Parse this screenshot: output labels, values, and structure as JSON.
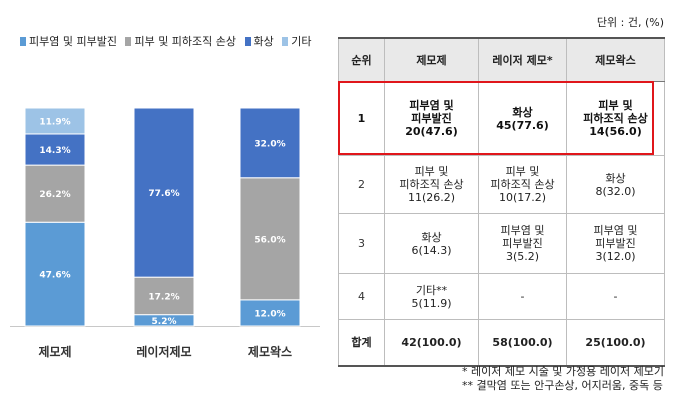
{
  "chart_data": {
    "type": "bar",
    "stacked": true,
    "categories": [
      "제모제",
      "레이저제모",
      "제모왁스"
    ],
    "series": [
      {
        "name": "피부염 및 피부발진",
        "values": [
          47.6,
          5.2,
          12.0
        ],
        "labels": [
          "47.6%",
          "5.2%",
          "12.0%"
        ],
        "color": "#5b9bd5"
      },
      {
        "name": "피부 및 피하조직 손상",
        "values": [
          26.2,
          17.2,
          56.0
        ],
        "labels": [
          "26.2%",
          "17.2%",
          "56.0%"
        ],
        "color": "#a5a5a5"
      },
      {
        "name": "화상",
        "values": [
          14.3,
          77.6,
          32.0
        ],
        "labels": [
          "14.3%",
          "77.6%",
          "32.0%"
        ],
        "color": "#4472c4"
      },
      {
        "name": "기타",
        "values": [
          11.9,
          0,
          0
        ],
        "labels": [
          "11.9%",
          "",
          ""
        ],
        "color": "#9dc3e6"
      }
    ],
    "ylim": [
      0,
      100
    ],
    "legend_position": "top"
  },
  "table": {
    "unit": "단위 : 건, (%)",
    "headers": [
      "순위",
      "제모제",
      "레이저 제모*",
      "제모왁스"
    ],
    "rows": [
      [
        "1",
        "피부염 및\n피부발진\n20(47.6)",
        "화상\n45(77.6)",
        "피부 및\n피하조직 손상\n14(56.0)"
      ],
      [
        "2",
        "피부 및\n피하조직 손상\n11(26.2)",
        "피부 및\n피하조직 손상\n10(17.2)",
        "화상\n8(32.0)"
      ],
      [
        "3",
        "화상\n6(14.3)",
        "피부염 및\n피부발진\n3(5.2)",
        "피부염 및\n피부발진\n3(12.0)"
      ],
      [
        "4",
        "기타**\n5(11.9)",
        "-",
        "-"
      ]
    ],
    "total": [
      "합계",
      "42(100.0)",
      "58(100.0)",
      "25(100.0)"
    ],
    "highlight_color": "#e0161b"
  },
  "notes": [
    "* 레이저 제모 시술 및 가정용 레이저 제모기",
    "** 결막염 또는 안구손상, 어지러움, 중독 등"
  ]
}
